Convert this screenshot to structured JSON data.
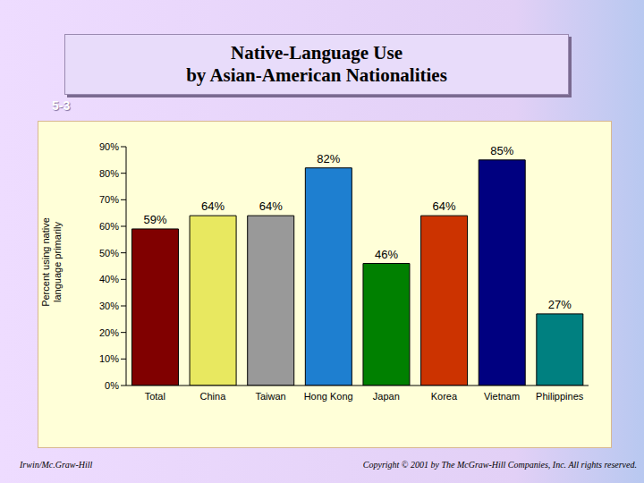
{
  "chart_data": {
    "type": "bar",
    "title": [
      "Native-Language Use",
      "by Asian-American Nationalities"
    ],
    "y_label": "Percent using native language primarily",
    "categories": [
      "Total",
      "China",
      "Taiwan",
      "Hong Kong",
      "Japan",
      "Korea",
      "Vietnam",
      "Philippines"
    ],
    "values": [
      59,
      64,
      64,
      82,
      46,
      64,
      85,
      27
    ],
    "value_labels": [
      "59%",
      "64%",
      "64%",
      "82%",
      "46%",
      "64%",
      "85%",
      "27%"
    ],
    "colors": [
      "#800000",
      "#e8e860",
      "#999999",
      "#1e7fd0",
      "#008000",
      "#cc3300",
      "#000080",
      "#008080"
    ],
    "ylim": [
      0,
      90
    ],
    "yticks": [
      {
        "value": 0,
        "label": "0%"
      },
      {
        "value": 10,
        "label": "10%"
      },
      {
        "value": 20,
        "label": "20%"
      },
      {
        "value": 30,
        "label": "30%"
      },
      {
        "value": 40,
        "label": "40%"
      },
      {
        "value": 50,
        "label": "50%"
      },
      {
        "value": 60,
        "label": "60%"
      },
      {
        "value": 70,
        "label": "70%"
      },
      {
        "value": 80,
        "label": "80%"
      },
      {
        "value": 90,
        "label": "90%"
      }
    ],
    "grid": false,
    "data_labels": true
  },
  "slide": {
    "number": "5-3",
    "publisher": "Irwin/Mc.Graw-Hill",
    "copyright": "Copyright © 2001 by The McGraw-Hill Companies, Inc. All rights reserved."
  }
}
